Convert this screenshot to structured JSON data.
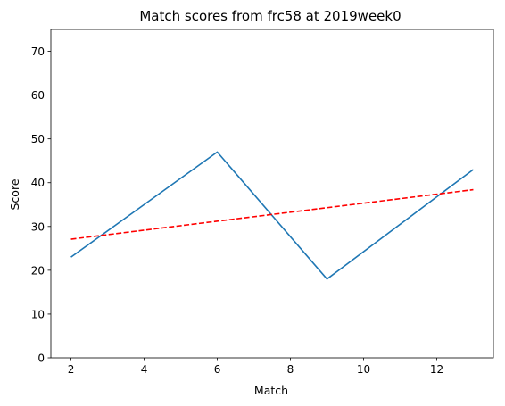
{
  "chart_data": {
    "type": "line",
    "title": "Match scores from frc58 at 2019week0",
    "xlabel": "Match",
    "ylabel": "Score",
    "xlim": [
      1.45,
      13.55
    ],
    "ylim": [
      0,
      75
    ],
    "xticks": [
      2,
      4,
      6,
      8,
      10,
      12
    ],
    "yticks": [
      0,
      10,
      20,
      30,
      40,
      50,
      60,
      70
    ],
    "grid": false,
    "series": [
      {
        "style": "solid",
        "color": "#1f77b4",
        "x": [
          2,
          6,
          9,
          13
        ],
        "y": [
          23,
          47,
          18,
          43
        ]
      },
      {
        "style": "dashed",
        "color": "#ff0000",
        "x": [
          2,
          13
        ],
        "y": [
          27.1,
          38.4
        ]
      }
    ]
  }
}
